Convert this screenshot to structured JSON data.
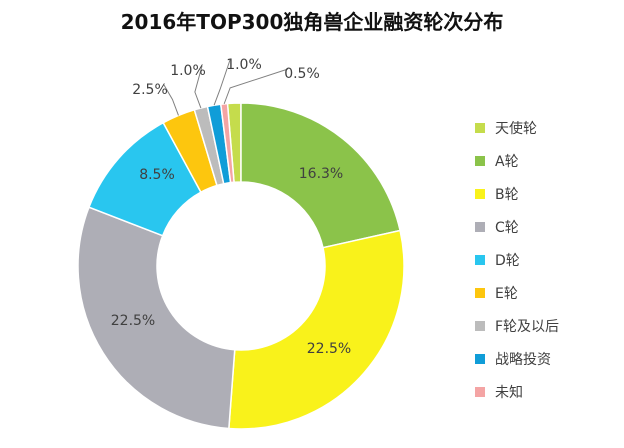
{
  "chart_data": {
    "type": "pie",
    "title": "2016年TOP300独角兽企业融资轮次分布",
    "donut": true,
    "legend_position": "right",
    "categories": [
      "天使轮",
      "A轮",
      "B轮",
      "C轮",
      "D轮",
      "E轮",
      "F轮及以后",
      "战略投资",
      "未知"
    ],
    "values": [
      1.0,
      16.3,
      22.5,
      22.5,
      8.5,
      2.5,
      1.0,
      1.0,
      0.5
    ],
    "data_labels": [
      "",
      "16.3%",
      "22.5%",
      "22.5%",
      "8.5%",
      "2.5%",
      "1.0%",
      "1.0%",
      "0.5%"
    ],
    "colors": [
      "#c5dc4c",
      "#8bc34a",
      "#f9f21b",
      "#aeaeb6",
      "#29c6ef",
      "#fdc60e",
      "#bcbcbc",
      "#109dd8",
      "#f4a4a4"
    ]
  }
}
